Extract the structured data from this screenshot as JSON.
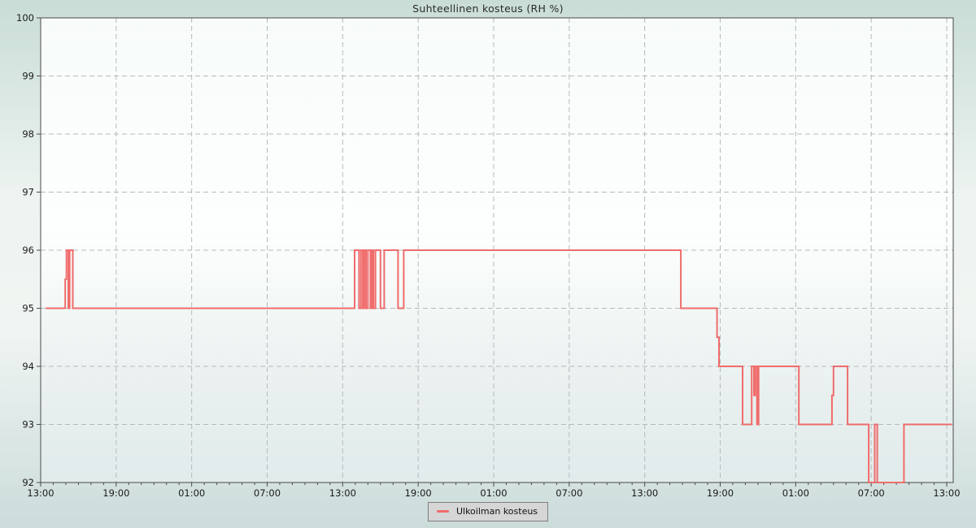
{
  "page": {
    "title": "Suhteellinen kosteus (RH %)"
  },
  "legend": {
    "items": [
      {
        "label": "Ulkoilman kosteus",
        "color": "#f06c6c"
      }
    ]
  },
  "colors": {
    "line": "#f06c6c",
    "grid": "#b5babc",
    "axis": "#4a4a4a",
    "tick_text": "#1a1a1a",
    "plot_gradient": [
      "#f7fbf9",
      "#fdfffe",
      "#e9f0ef",
      "#e1ebeb"
    ]
  },
  "chart_data": {
    "type": "line",
    "step": "after",
    "title": "Suhteellinen kosteus (RH %)",
    "xlabel": "",
    "ylabel": "",
    "ylim": [
      92,
      100
    ],
    "xlim_hours": [
      0,
      72.5
    ],
    "grid": "dashed",
    "legend_position": "bottom-center",
    "y_ticks": [
      92,
      93,
      94,
      95,
      96,
      97,
      98,
      99,
      100
    ],
    "x_major_every_hours": 6,
    "x_minor_every_hours": 1,
    "x_tick_labels": [
      "13:00",
      "19:00",
      "01:00",
      "07:00",
      "13:00",
      "19:00",
      "01:00",
      "07:00",
      "13:00",
      "19:00",
      "01:00",
      "07:00",
      "13:00"
    ],
    "series": [
      {
        "name": "Ulkoilman kosteus",
        "color": "#f06c6c",
        "unit": "RH %",
        "points_hour_value": [
          [
            0.4,
            95
          ],
          [
            1.95,
            95.5
          ],
          [
            2.05,
            96
          ],
          [
            2.2,
            95
          ],
          [
            2.3,
            96
          ],
          [
            2.55,
            95
          ],
          [
            24.95,
            96
          ],
          [
            25.3,
            95
          ],
          [
            25.45,
            96
          ],
          [
            25.6,
            95
          ],
          [
            25.72,
            96
          ],
          [
            25.85,
            95
          ],
          [
            26.0,
            96
          ],
          [
            26.2,
            95
          ],
          [
            26.32,
            96
          ],
          [
            26.45,
            95
          ],
          [
            26.6,
            96
          ],
          [
            27.0,
            95
          ],
          [
            27.3,
            96
          ],
          [
            28.4,
            95
          ],
          [
            28.85,
            96
          ],
          [
            50.87,
            95
          ],
          [
            53.75,
            94.5
          ],
          [
            53.9,
            94
          ],
          [
            55.78,
            93
          ],
          [
            56.5,
            94
          ],
          [
            56.68,
            93.5
          ],
          [
            56.78,
            94
          ],
          [
            56.92,
            93
          ],
          [
            57.05,
            94
          ],
          [
            60.25,
            93
          ],
          [
            62.88,
            93.5
          ],
          [
            63.0,
            94
          ],
          [
            64.12,
            93
          ],
          [
            65.8,
            92
          ],
          [
            66.28,
            93
          ],
          [
            66.48,
            92
          ],
          [
            68.6,
            93
          ],
          [
            72.4,
            93
          ]
        ]
      }
    ]
  }
}
